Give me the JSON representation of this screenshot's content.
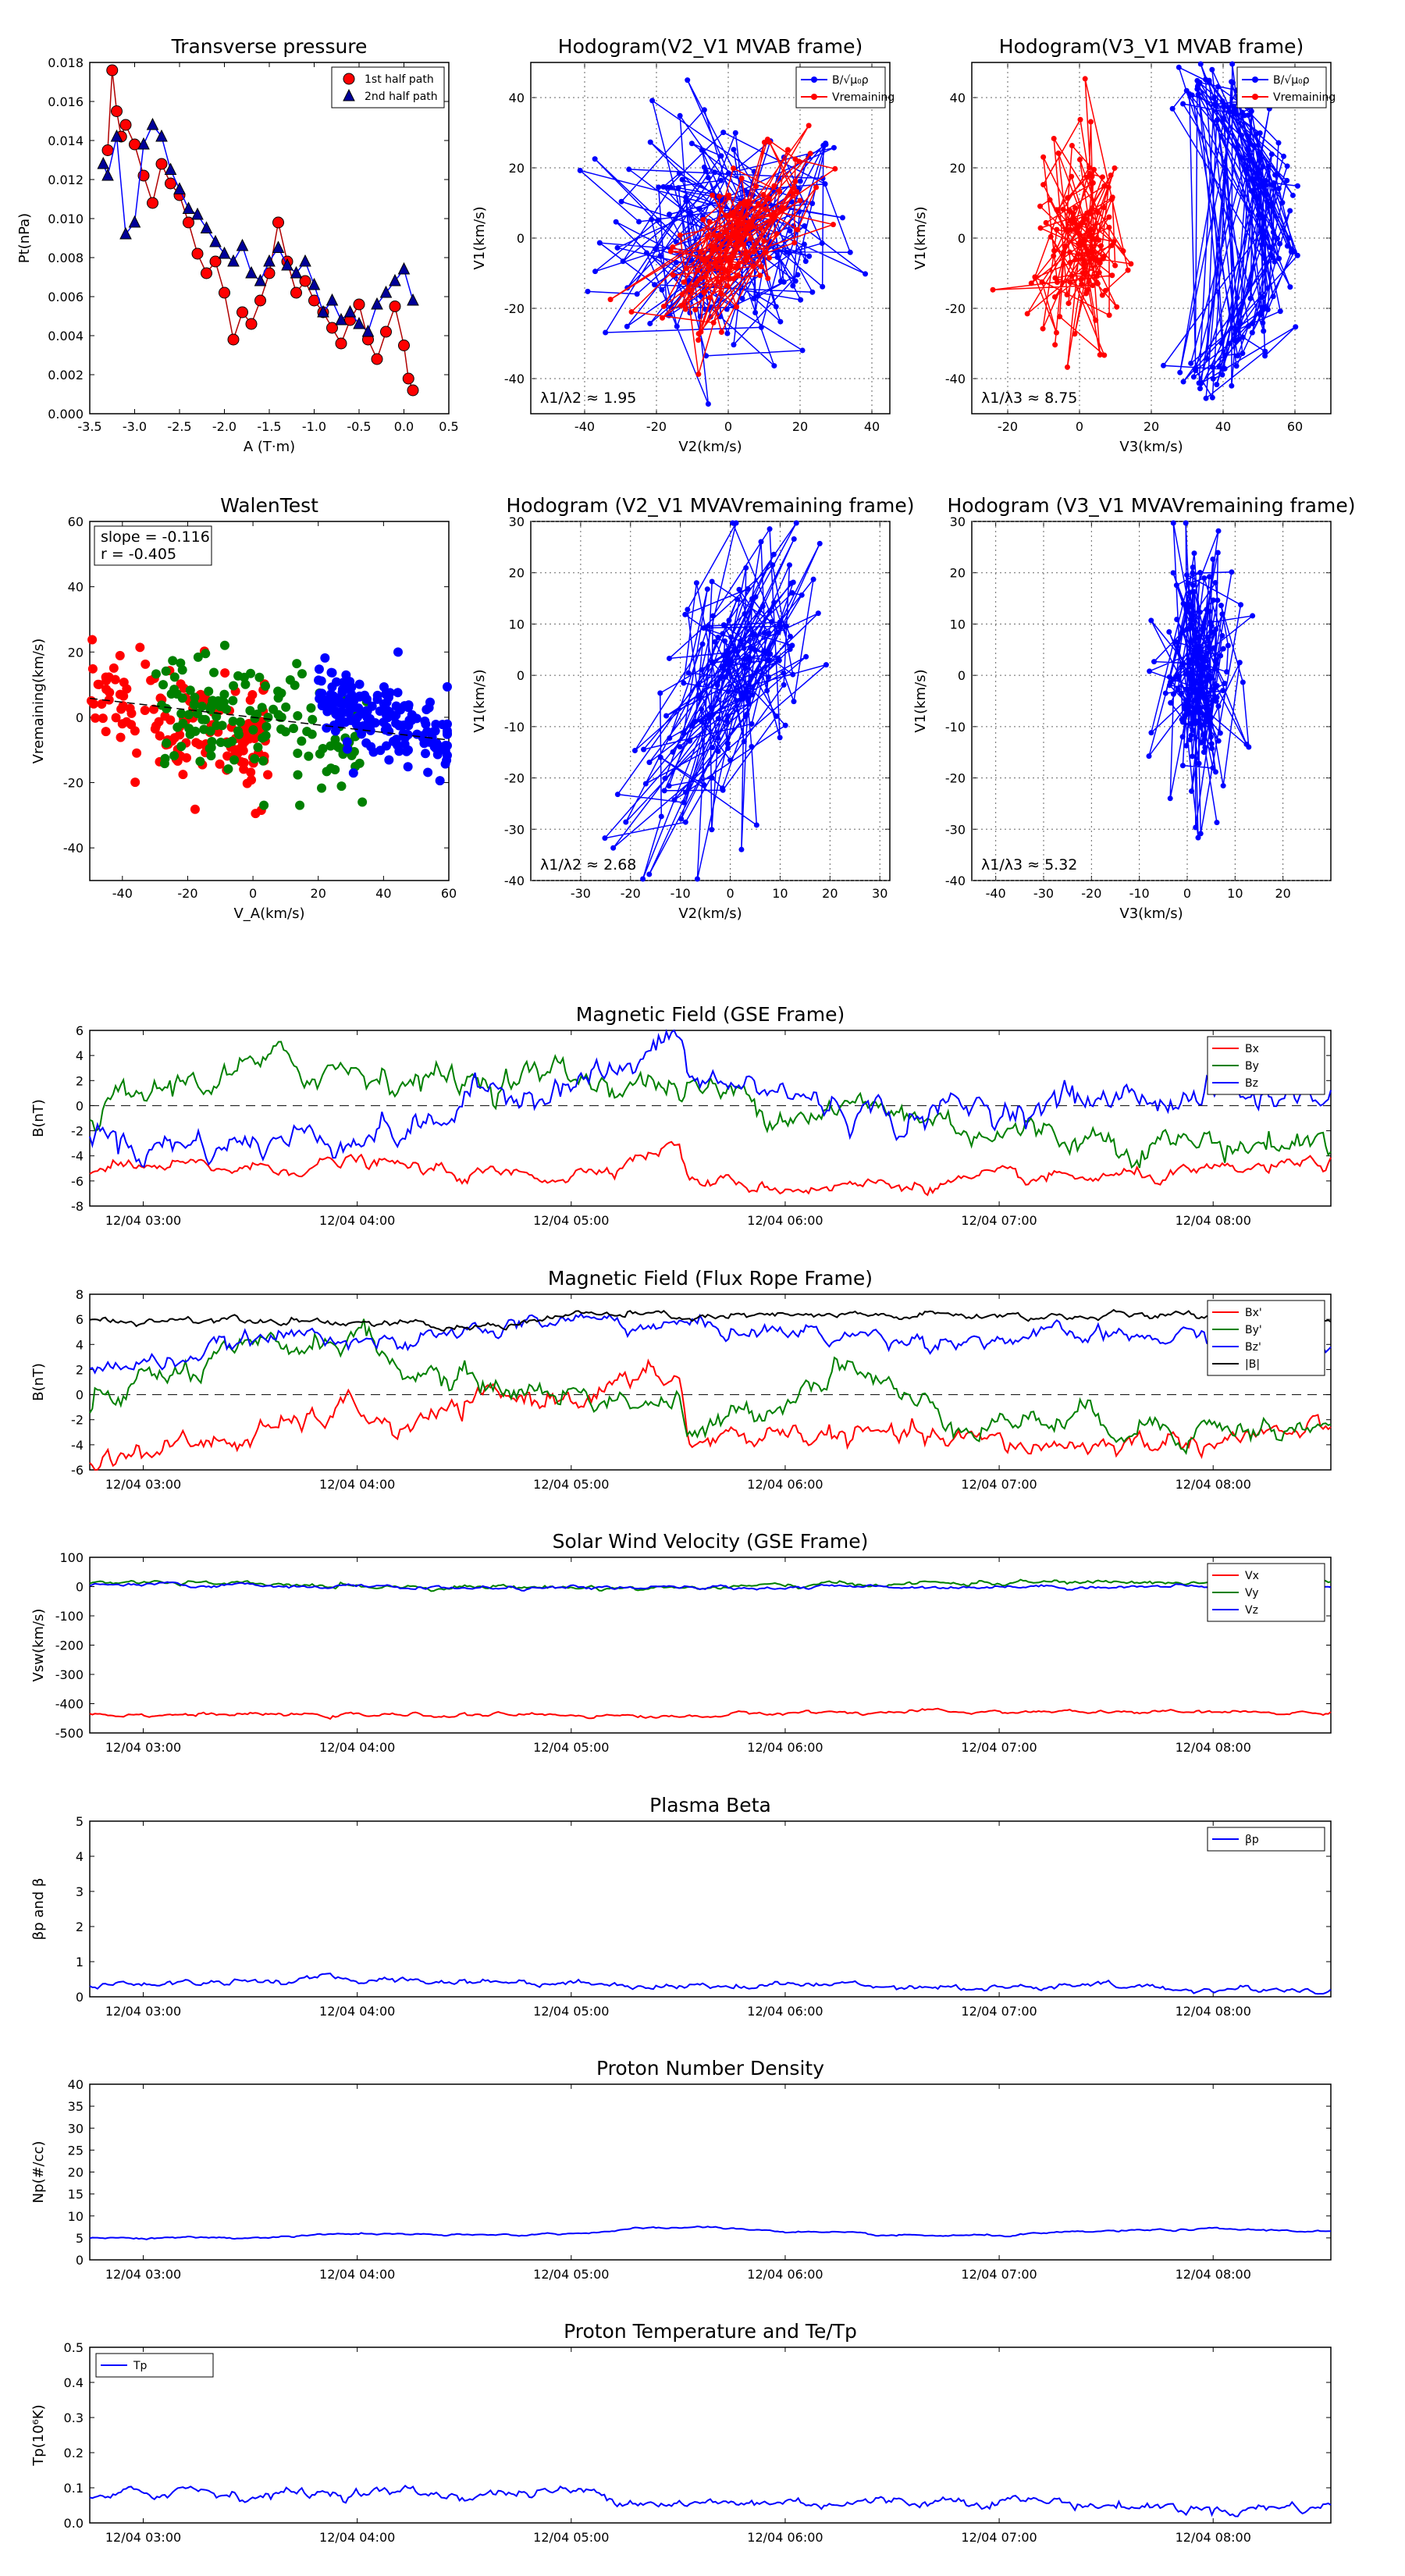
{
  "colors": {
    "red": "#ff0000",
    "green": "#008000",
    "blue": "#0000ff",
    "black": "#000000",
    "darkred": "#b00000",
    "navy": "#000099"
  },
  "chart_data": [
    {
      "id": "tp",
      "type": "scatter",
      "title": "Transverse pressure",
      "xlabel": "A (T·m)",
      "ylabel": "Pt(nPa)",
      "xlim": [
        -3.5,
        0.5
      ],
      "ylim": [
        0,
        0.018
      ],
      "xticks": [
        "-3.5",
        "-3.0",
        "-2.5",
        "-2.0",
        "-1.5",
        "-1.0",
        "-0.5",
        "0.0",
        "0.5"
      ],
      "yticks": [
        "0.000",
        "0.002",
        "0.004",
        "0.006",
        "0.008",
        "0.010",
        "0.012",
        "0.014",
        "0.016",
        "0.018"
      ],
      "legend": [
        "1st half path",
        "2nd half path"
      ],
      "legend_position": "top-right",
      "series": [
        {
          "name": "1st half path",
          "marker": "circle",
          "x": [
            -3.3,
            -3.25,
            -3.2,
            -3.15,
            -3.1,
            -3.0,
            -2.9,
            -2.8,
            -2.7,
            -2.6,
            -2.5,
            -2.4,
            -2.3,
            -2.2,
            -2.1,
            -2.0,
            -1.9,
            -1.8,
            -1.7,
            -1.6,
            -1.5,
            -1.4,
            -1.3,
            -1.2,
            -1.1,
            -1.0,
            -0.9,
            -0.8,
            -0.7,
            -0.6,
            -0.5,
            -0.4,
            -0.3,
            -0.2,
            -0.1,
            0.0,
            0.05,
            0.1
          ],
          "y": [
            0.0135,
            0.0176,
            0.0155,
            0.0142,
            0.0148,
            0.0138,
            0.0122,
            0.0108,
            0.0128,
            0.0118,
            0.0112,
            0.0098,
            0.0082,
            0.0072,
            0.0078,
            0.0062,
            0.0038,
            0.0052,
            0.0046,
            0.0058,
            0.0072,
            0.0098,
            0.0078,
            0.0062,
            0.0068,
            0.0058,
            0.0052,
            0.0044,
            0.0036,
            0.0048,
            0.0056,
            0.0038,
            0.0028,
            0.0042,
            0.0055,
            0.0035,
            0.0018,
            0.0012
          ]
        },
        {
          "name": "2nd half path",
          "marker": "triangle",
          "x": [
            -3.35,
            -3.3,
            -3.2,
            -3.1,
            -3.0,
            -2.9,
            -2.8,
            -2.7,
            -2.6,
            -2.5,
            -2.4,
            -2.3,
            -2.2,
            -2.1,
            -2.0,
            -1.9,
            -1.8,
            -1.7,
            -1.6,
            -1.5,
            -1.4,
            -1.3,
            -1.2,
            -1.1,
            -1.0,
            -0.9,
            -0.8,
            -0.7,
            -0.6,
            -0.5,
            -0.4,
            -0.3,
            -0.2,
            -0.1,
            0.0,
            0.1
          ],
          "y": [
            0.0128,
            0.0122,
            0.0142,
            0.0092,
            0.0098,
            0.0138,
            0.0148,
            0.0142,
            0.0125,
            0.0115,
            0.0105,
            0.0102,
            0.0095,
            0.0088,
            0.0082,
            0.0078,
            0.0086,
            0.0072,
            0.0068,
            0.0078,
            0.0085,
            0.0076,
            0.0072,
            0.0078,
            0.0066,
            0.0052,
            0.0058,
            0.0048,
            0.0052,
            0.0046,
            0.0042,
            0.0056,
            0.0062,
            0.0068,
            0.0074,
            0.0058
          ]
        }
      ]
    },
    {
      "id": "h1",
      "type": "scatter",
      "title": "Hodogram(V2_V1 MVAB frame)",
      "xlabel": "V2(km/s)",
      "ylabel": "V1(km/s)",
      "xlim": [
        -55,
        45
      ],
      "ylim": [
        -50,
        50
      ],
      "xticks": [
        "-40",
        "-20",
        "0",
        "20",
        "40"
      ],
      "yticks": [
        "-40",
        "-20",
        "0",
        "20",
        "40"
      ],
      "legend": [
        "B/√μ₀ρ",
        "Vremaining"
      ],
      "legend_position": "top-right",
      "grid": true,
      "annotation": "λ1/λ2 ≈ 1.95",
      "series": [
        {
          "name": "B/√μ₀ρ",
          "color": "blue",
          "center": [
            0,
            0
          ],
          "spread": [
            18,
            18
          ],
          "n": 160
        },
        {
          "name": "Vremaining",
          "color": "red",
          "center": [
            2,
            0
          ],
          "spread": [
            10,
            9
          ],
          "slope": 0.8,
          "n": 140
        }
      ]
    },
    {
      "id": "h2",
      "type": "scatter",
      "title": "Hodogram(V3_V1 MVAB frame)",
      "xlabel": "V3(km/s)",
      "ylabel": "V1(km/s)",
      "xlim": [
        -30,
        70
      ],
      "ylim": [
        -50,
        50
      ],
      "xticks": [
        "-20",
        "0",
        "20",
        "40",
        "60"
      ],
      "yticks": [
        "-40",
        "-20",
        "0",
        "20",
        "40"
      ],
      "legend": [
        "B/√μ₀ρ",
        "Vremaining"
      ],
      "legend_position": "top-right",
      "grid": true,
      "annotation": "λ1/λ3 ≈ 8.75",
      "series": [
        {
          "name": "B/√μ₀ρ",
          "color": "blue",
          "shape": "arc",
          "n": 150
        },
        {
          "name": "Vremaining",
          "color": "red",
          "center": [
            0,
            -2
          ],
          "spread": [
            6,
            15
          ],
          "n": 130
        }
      ]
    },
    {
      "id": "walen",
      "type": "scatter",
      "title": "WalenTest",
      "xlabel": "V_A(km/s)",
      "ylabel": "Vremaining(km/s)",
      "xlim": [
        -50,
        60
      ],
      "ylim": [
        -50,
        60
      ],
      "xticks": [
        "-40",
        "-20",
        "0",
        "20",
        "40",
        "60"
      ],
      "yticks": [
        "-40",
        "-20",
        "0",
        "20",
        "40",
        "60"
      ],
      "annotation": [
        "slope = -0.116",
        "r = -0.405"
      ],
      "fit_slope": -0.116,
      "series": [
        {
          "name": "red",
          "color": "red",
          "xrange": [
            -50,
            5
          ],
          "center_y": 0,
          "spread": 8,
          "n": 150
        },
        {
          "name": "green",
          "color": "green",
          "xrange": [
            -30,
            35
          ],
          "center_y": -2,
          "spread": 9,
          "n": 150
        },
        {
          "name": "blue",
          "color": "blue",
          "xrange": [
            20,
            60
          ],
          "center_y": 0,
          "spread": 6,
          "n": 180
        }
      ]
    },
    {
      "id": "h3",
      "type": "scatter",
      "title": "Hodogram (V2_V1 MVAVremaining frame)",
      "xlabel": "V2(km/s)",
      "ylabel": "V1(km/s)",
      "xlim": [
        -40,
        32
      ],
      "ylim": [
        -40,
        30
      ],
      "xticks": [
        "-30",
        "-20",
        "-10",
        "0",
        "10",
        "20",
        "30"
      ],
      "yticks": [
        "-40",
        "-30",
        "-20",
        "-10",
        "0",
        "10",
        "20",
        "30"
      ],
      "grid": true,
      "annotation": "λ1/λ2 ≈ 2.68",
      "series": [
        {
          "name": "V",
          "color": "blue",
          "center": [
            0,
            0
          ],
          "spread": [
            8,
            12
          ],
          "slope": 0.9,
          "n": 170
        }
      ]
    },
    {
      "id": "h4",
      "type": "scatter",
      "title": "Hodogram (V3_V1 MVAVremaining frame)",
      "xlabel": "V3(km/s)",
      "ylabel": "V1(km/s)",
      "xlim": [
        -45,
        30
      ],
      "ylim": [
        -40,
        30
      ],
      "xticks": [
        "-40",
        "-30",
        "-20",
        "-10",
        "0",
        "10",
        "20"
      ],
      "yticks": [
        "-40",
        "-30",
        "-20",
        "-10",
        "0",
        "10",
        "20",
        "30"
      ],
      "grid": true,
      "annotation": "λ1/λ3 ≈ 5.32",
      "series": [
        {
          "name": "V",
          "color": "blue",
          "center": [
            2,
            0
          ],
          "spread": [
            4,
            12
          ],
          "n": 170
        }
      ]
    },
    {
      "id": "bgse",
      "type": "line",
      "title": "Magnetic Field (GSE Frame)",
      "ylabel": "B(nT)",
      "x_start_hr": 2.75,
      "x_end_hr": 8.55,
      "xticks": [
        "12/04 03:00",
        "12/04 04:00",
        "12/04 05:00",
        "12/04 06:00",
        "12/04 07:00",
        "12/04 08:00"
      ],
      "ylim": [
        -8,
        6
      ],
      "yticks": [
        "-8",
        "-6",
        "-4",
        "-2",
        "0",
        "2",
        "4",
        "6"
      ],
      "zero_line": true,
      "legend_position": "top-right",
      "series": [
        {
          "name": "Bx",
          "color": "red",
          "knots_hr": [
            2.75,
            3.5,
            4.0,
            4.5,
            5.0,
            5.5,
            5.55,
            6.0,
            7.0,
            8.0,
            8.55
          ],
          "knots": [
            -5,
            -5,
            -4.5,
            -5.5,
            -5.5,
            -3,
            -6,
            -6.5,
            -6,
            -5.5,
            -4.5
          ],
          "noise": 0.35
        },
        {
          "name": "By",
          "color": "green",
          "knots_hr": [
            2.75,
            3.2,
            3.6,
            4.0,
            4.4,
            4.8,
            5.2,
            5.5,
            6.0,
            6.5,
            7.0,
            7.5,
            8.0,
            8.55
          ],
          "knots": [
            -1,
            2,
            3,
            3,
            2,
            2.5,
            2,
            1.5,
            0,
            -0.5,
            -2,
            -2.5,
            -3,
            -3
          ],
          "noise": 0.8
        },
        {
          "name": "Bz",
          "color": "blue",
          "knots_hr": [
            2.75,
            3.0,
            3.5,
            4.0,
            4.3,
            4.6,
            5.0,
            5.3,
            5.5,
            5.55,
            6.0,
            6.5,
            7.0,
            7.5,
            8.0,
            8.55
          ],
          "knots": [
            -2,
            -3,
            -3,
            -2,
            -2,
            1,
            2,
            3,
            5.5,
            2,
            1,
            -1,
            0,
            0.5,
            1,
            0.5
          ],
          "noise": 0.8
        }
      ]
    },
    {
      "id": "bfr",
      "type": "line",
      "title": "Magnetic Field (Flux Rope Frame)",
      "ylabel": "B(nT)",
      "x_start_hr": 2.75,
      "x_end_hr": 8.55,
      "xticks": [
        "12/04 03:00",
        "12/04 04:00",
        "12/04 05:00",
        "12/04 06:00",
        "12/04 07:00",
        "12/04 08:00"
      ],
      "ylim": [
        -6,
        8
      ],
      "yticks": [
        "-6",
        "-4",
        "-2",
        "0",
        "2",
        "4",
        "6",
        "8"
      ],
      "zero_line": true,
      "legend_position": "top-right",
      "series": [
        {
          "name": "Bx'",
          "color": "red",
          "knots_hr": [
            2.75,
            3.5,
            4.0,
            4.2,
            4.6,
            5.0,
            5.5,
            5.55,
            6.0,
            6.5,
            7.0,
            7.5,
            8.0,
            8.55
          ],
          "knots": [
            -5,
            -3.5,
            -1,
            -3,
            -0.5,
            0,
            1.5,
            -4,
            -3,
            -3.5,
            -4,
            -4,
            -3.5,
            -3
          ],
          "noise": 0.6
        },
        {
          "name": "By'",
          "color": "green",
          "knots_hr": [
            2.75,
            3.0,
            3.5,
            4.0,
            4.2,
            4.5,
            5.0,
            5.5,
            5.55,
            6.0,
            6.3,
            6.6,
            7.0,
            7.5,
            8.0,
            8.55
          ],
          "knots": [
            -1,
            1,
            3,
            5,
            2,
            1,
            0,
            -0.5,
            -4,
            0,
            3,
            -1,
            -2,
            -2,
            -2.5,
            -3
          ],
          "noise": 0.7
        },
        {
          "name": "Bz'",
          "color": "blue",
          "knots_hr": [
            2.75,
            3.2,
            3.6,
            4.0,
            4.2,
            4.5,
            5.0,
            5.5,
            6.0,
            6.5,
            7.0,
            8.0,
            8.55
          ],
          "knots": [
            2,
            3,
            4.5,
            5,
            3.5,
            5,
            6,
            5.5,
            5,
            4.5,
            4.5,
            4.5,
            4
          ],
          "noise": 0.45
        },
        {
          "name": "|B|",
          "color": "black",
          "knots_hr": [
            2.75,
            3.5,
            4.0,
            4.5,
            5.0,
            5.5,
            6.0,
            7.0,
            8.0,
            8.55
          ],
          "knots": [
            5.8,
            6.2,
            5.8,
            5.2,
            6.4,
            6.2,
            6.2,
            6.3,
            6.2,
            6
          ],
          "noise": 0.2
        }
      ]
    },
    {
      "id": "vsw",
      "type": "line",
      "title": "Solar Wind Velocity (GSE Frame)",
      "ylabel": "Vsw(km/s)",
      "x_start_hr": 2.75,
      "x_end_hr": 8.55,
      "xticks": [
        "12/04 03:00",
        "12/04 04:00",
        "12/04 05:00",
        "12/04 06:00",
        "12/04 07:00",
        "12/04 08:00"
      ],
      "ylim": [
        -500,
        100
      ],
      "yticks": [
        "-500",
        "-400",
        "-300",
        "-200",
        "-100",
        "0",
        "100"
      ],
      "legend_position": "top-right",
      "series": [
        {
          "name": "Vx",
          "color": "red",
          "knots_hr": [
            2.75,
            4.0,
            5.0,
            5.5,
            6.0,
            7.0,
            8.0,
            8.55
          ],
          "knots": [
            -435,
            -440,
            -438,
            -445,
            -430,
            -428,
            -430,
            -432
          ],
          "noise": 4
        },
        {
          "name": "Vy",
          "color": "green",
          "knots_hr": [
            2.75,
            3.5,
            4.5,
            5.5,
            6.5,
            7.5,
            8.55
          ],
          "knots": [
            20,
            5,
            0,
            -5,
            10,
            15,
            10
          ],
          "noise": 5
        },
        {
          "name": "Vz",
          "color": "blue",
          "knots_hr": [
            2.75,
            3.5,
            4.5,
            5.5,
            6.5,
            7.5,
            8.55
          ],
          "knots": [
            5,
            5,
            -5,
            -5,
            0,
            0,
            0
          ],
          "noise": 4
        }
      ]
    },
    {
      "id": "beta",
      "type": "line",
      "title": "Plasma Beta",
      "ylabel": "βp and β",
      "x_start_hr": 2.75,
      "x_end_hr": 8.55,
      "xticks": [
        "12/04 03:00",
        "12/04 04:00",
        "12/04 05:00",
        "12/04 06:00",
        "12/04 07:00",
        "12/04 08:00"
      ],
      "ylim": [
        0,
        5
      ],
      "yticks": [
        "0",
        "1",
        "2",
        "3",
        "4",
        "5"
      ],
      "legend_position": "top-right",
      "series": [
        {
          "name": "βp",
          "color": "blue",
          "knots_hr": [
            2.75,
            3.5,
            4.0,
            4.5,
            5.0,
            5.5,
            6.0,
            6.5,
            7.0,
            7.5,
            8.0,
            8.55
          ],
          "knots": [
            0.35,
            0.45,
            0.5,
            0.45,
            0.4,
            0.3,
            0.35,
            0.35,
            0.25,
            0.3,
            0.2,
            0.22
          ],
          "noise": 0.06
        }
      ]
    },
    {
      "id": "np",
      "type": "line",
      "title": "Proton Number Density",
      "ylabel": "Np(#/cc)",
      "x_start_hr": 2.75,
      "x_end_hr": 8.55,
      "xticks": [
        "12/04 03:00",
        "12/04 04:00",
        "12/04 05:00",
        "12/04 06:00",
        "12/04 07:00",
        "12/04 08:00"
      ],
      "ylim": [
        0,
        40
      ],
      "yticks": [
        "0",
        "5",
        "10",
        "15",
        "20",
        "25",
        "30",
        "35",
        "40"
      ],
      "series": [
        {
          "name": "Np",
          "color": "blue",
          "knots_hr": [
            2.75,
            3.5,
            4.0,
            4.5,
            5.0,
            5.3,
            5.6,
            6.0,
            6.5,
            7.0,
            7.5,
            8.0,
            8.55
          ],
          "knots": [
            5,
            5,
            6,
            5.5,
            6,
            7,
            7.5,
            6.5,
            5.5,
            5.5,
            6.5,
            7,
            6.5
          ],
          "noise": 0.15
        }
      ]
    },
    {
      "id": "tpp",
      "type": "line",
      "title": "Proton Temperature and Te/Tp",
      "ylabel": "Tp(10⁶K)",
      "x_start_hr": 2.75,
      "x_end_hr": 8.55,
      "xticks": [
        "12/04 03:00",
        "12/04 04:00",
        "12/04 05:00",
        "12/04 06:00",
        "12/04 07:00",
        "12/04 08:00"
      ],
      "ylim": [
        0,
        0.5
      ],
      "yticks": [
        "0.0",
        "0.1",
        "0.2",
        "0.3",
        "0.4",
        "0.5"
      ],
      "legend_position": "top-left",
      "series": [
        {
          "name": "Tp",
          "color": "blue",
          "knots_hr": [
            2.75,
            3.2,
            3.5,
            4.0,
            4.5,
            5.0,
            5.3,
            5.6,
            6.0,
            6.5,
            7.0,
            7.5,
            8.0,
            8.55
          ],
          "knots": [
            0.06,
            0.1,
            0.08,
            0.09,
            0.08,
            0.09,
            0.07,
            0.05,
            0.06,
            0.06,
            0.07,
            0.05,
            0.04,
            0.05
          ],
          "noise": 0.01
        }
      ]
    }
  ]
}
